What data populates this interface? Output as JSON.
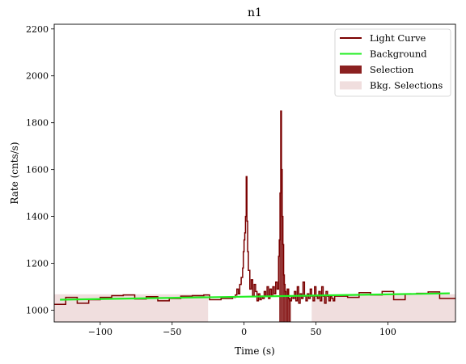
{
  "chart_data": {
    "type": "line",
    "title": "n1",
    "xlabel": "Time (s)",
    "ylabel": "Rate (cnts/s)",
    "xlim": [
      -132,
      147
    ],
    "ylim": [
      950,
      2220
    ],
    "x_ticks": [
      -100,
      -50,
      0,
      50,
      100
    ],
    "y_ticks": [
      1000,
      1200,
      1400,
      1600,
      1800,
      2000,
      2200
    ],
    "x_tick_labels": [
      "−100",
      "−50",
      "0",
      "50",
      "100"
    ],
    "y_tick_labels": [
      "1000",
      "1200",
      "1400",
      "1600",
      "1800",
      "2000",
      "2200"
    ],
    "grid": false,
    "legend_position": "top-right",
    "legend": [
      {
        "label": "Light Curve",
        "kind": "line",
        "color": "#7a0000"
      },
      {
        "label": "Background",
        "kind": "line",
        "color": "#22ee22"
      },
      {
        "label": "Selection",
        "kind": "patch",
        "color": "#8b2020"
      },
      {
        "label": "Bkg. Selections",
        "kind": "patch",
        "color": "#f0dede"
      }
    ],
    "colors": {
      "light_curve": "#7a0000",
      "background": "#22ee22",
      "selection": "#8b2020",
      "bkg_selection": "#f0dede"
    },
    "bkg_selections": [
      [
        -132,
        -25
      ],
      [
        47,
        147
      ]
    ],
    "selection": [
      24.5,
      32.5
    ],
    "background_line": {
      "x": [
        -128,
        143
      ],
      "y": [
        1045,
        1072
      ]
    },
    "light_curve": {
      "x": [
        -132,
        -124,
        -116,
        -108,
        -100,
        -92,
        -84,
        -76,
        -68,
        -60,
        -52,
        -44,
        -36,
        -28,
        -24,
        -16,
        -8,
        -6,
        -5,
        -4,
        -3,
        -2,
        -1,
        -0.5,
        0,
        0.5,
        1,
        1.5,
        2,
        2.5,
        3,
        4,
        5,
        6,
        7,
        8,
        9,
        10,
        11,
        12,
        13,
        14,
        15,
        16,
        17,
        18,
        19,
        20,
        21,
        22,
        23,
        24,
        24.5,
        25,
        25.5,
        26,
        26.5,
        27,
        27.5,
        28,
        28.5,
        29,
        30,
        31,
        32,
        33,
        34,
        35,
        36,
        37,
        38,
        39,
        40,
        41,
        42,
        43,
        44,
        45,
        46,
        47,
        48,
        49,
        50,
        51,
        52,
        53,
        54,
        55,
        56,
        57,
        58,
        59,
        60,
        61,
        62,
        63,
        72,
        80,
        88,
        96,
        104,
        112,
        120,
        128,
        136
      ],
      "y": [
        1025,
        1055,
        1030,
        1045,
        1055,
        1062,
        1065,
        1048,
        1058,
        1040,
        1050,
        1060,
        1062,
        1065,
        1045,
        1050,
        1055,
        1065,
        1090,
        1070,
        1110,
        1140,
        1180,
        1250,
        1300,
        1330,
        1400,
        1570,
        1380,
        1250,
        1170,
        1090,
        1130,
        1060,
        1110,
        1080,
        1040,
        1070,
        1045,
        1060,
        1050,
        1080,
        1060,
        1100,
        1050,
        1090,
        1060,
        1100,
        1070,
        1120,
        1090,
        1230,
        1300,
        1500,
        1850,
        1600,
        1400,
        1280,
        1150,
        1110,
        1080,
        1060,
        1090,
        1050,
        1040,
        1060,
        1050,
        1080,
        1040,
        1100,
        1030,
        1070,
        1050,
        1120,
        1060,
        1040,
        1070,
        1050,
        1090,
        1060,
        1040,
        1100,
        1060,
        1050,
        1080,
        1040,
        1100,
        1060,
        1030,
        1080,
        1060,
        1040,
        1060,
        1050,
        1040,
        1060,
        1055,
        1075,
        1065,
        1080,
        1045,
        1070,
        1072,
        1078,
        1050
      ]
    }
  }
}
